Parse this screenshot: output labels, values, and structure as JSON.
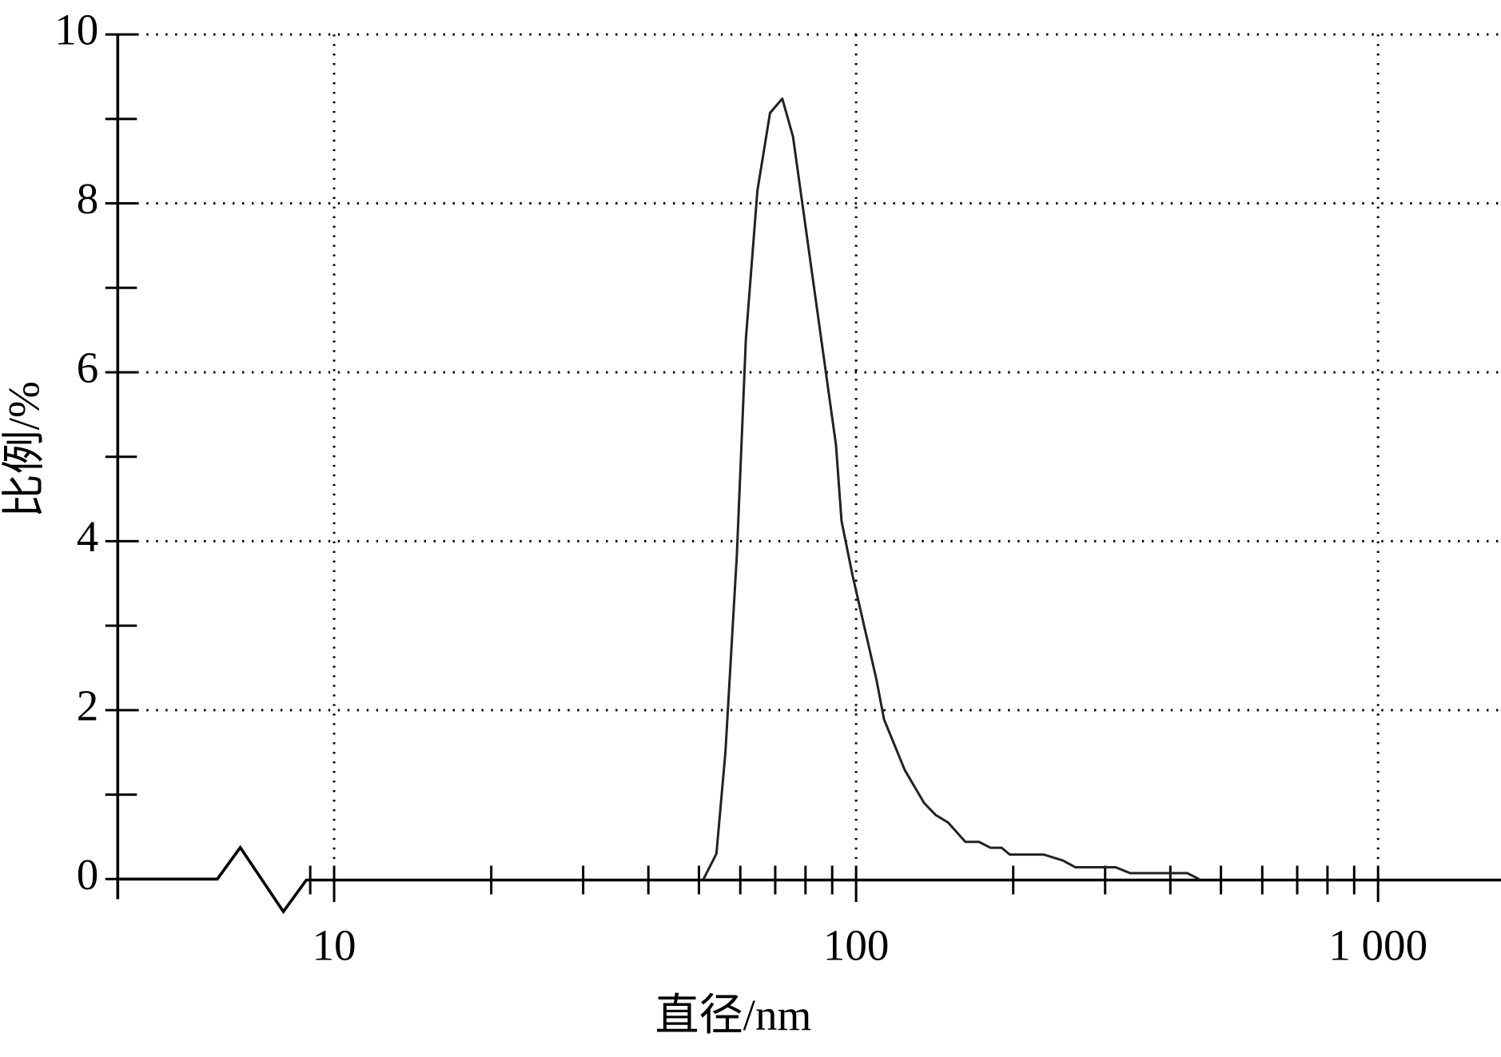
{
  "chart_data": {
    "type": "line",
    "xlabel": "直径/nm",
    "ylabel": "比例/%",
    "x": [
      51.0,
      54.0,
      56.2,
      59.1,
      61.5,
      64.7,
      68.4,
      72.2,
      75.7,
      91.5,
      93.8,
      98.4,
      109.3,
      113.1,
      124,
      135,
      142,
      150,
      162,
      172,
      181,
      190,
      197,
      229,
      249,
      263,
      314,
      335,
      431,
      454
    ],
    "series": [
      {
        "name": "比例",
        "color": "#222222",
        "values": [
          0,
          0.3,
          1.5,
          3.85,
          6.4,
          8.15,
          9.07,
          9.24,
          8.79,
          5.14,
          4.24,
          3.6,
          2.37,
          1.89,
          1.29,
          0.9,
          0.76,
          0.67,
          0.44,
          0.44,
          0.37,
          0.37,
          0.29,
          0.29,
          0.22,
          0.14,
          0.14,
          0.07,
          0.07,
          0
        ]
      }
    ],
    "xscale": "log",
    "xlim": [
      3.85,
      1720
    ],
    "xticks": [
      10,
      100,
      {
        "value": 1000,
        "label": "1 000"
      }
    ],
    "xminorticks": [
      9,
      20,
      30,
      40,
      50,
      60,
      70,
      80,
      90,
      200,
      300,
      400,
      500,
      600,
      700,
      800,
      900
    ],
    "ylim": [
      0,
      10
    ],
    "yticks": [
      0,
      2,
      4,
      6,
      8,
      10
    ],
    "yminorticks": [
      1,
      3,
      5,
      7,
      9
    ],
    "grid": true
  }
}
